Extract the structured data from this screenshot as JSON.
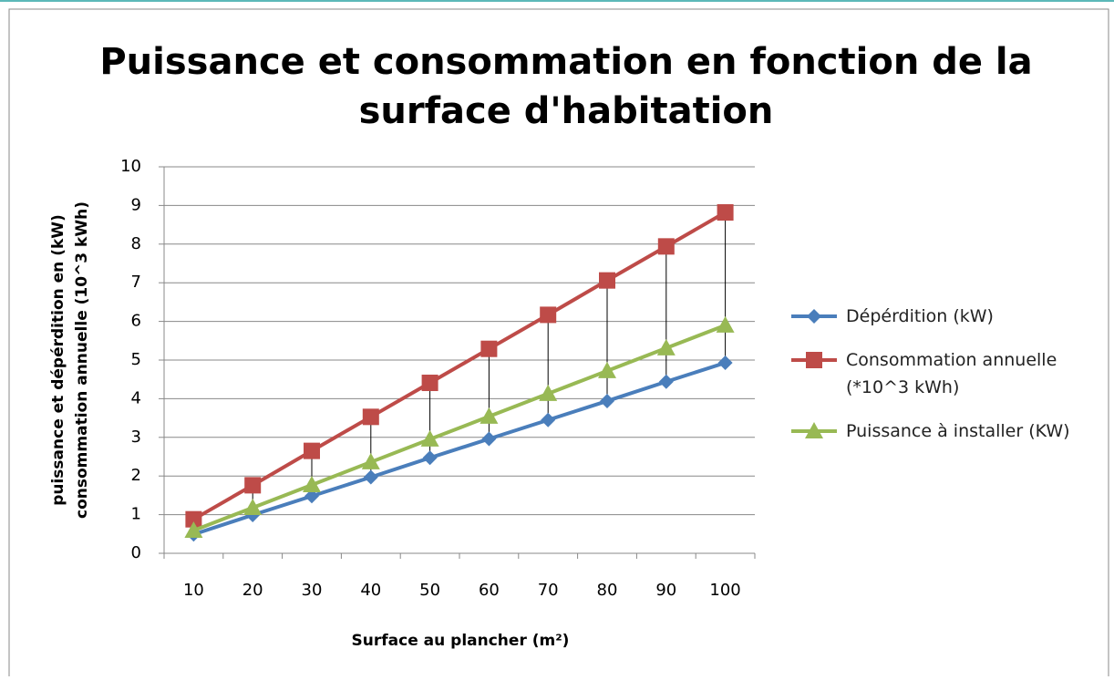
{
  "chart_data": {
    "type": "line",
    "title": [
      "Puissance et consommation en fonction de la",
      "surface d'habitation"
    ],
    "xlabel": "Surface au plancher (m²)",
    "ylabel": [
      "puissance et dépérdition en (kW)",
      "consommation annuelle (10^3 kWh)"
    ],
    "categories": [
      "10",
      "20",
      "30",
      "40",
      "50",
      "60",
      "70",
      "80",
      "90",
      "100"
    ],
    "series": [
      {
        "name": "Dépérdition (kW)",
        "color": "#4a7ebb",
        "marker": "diamond",
        "values": [
          0.49,
          0.99,
          1.48,
          1.97,
          2.47,
          2.96,
          3.45,
          3.94,
          4.44,
          4.93
        ]
      },
      {
        "name": "Consommation annuelle (*10^3 kWh)",
        "color": "#be4b48",
        "marker": "square",
        "values": [
          0.88,
          1.76,
          2.65,
          3.53,
          4.41,
          5.29,
          6.17,
          7.06,
          7.94,
          8.82
        ]
      },
      {
        "name": "Puissance à installer (KW)",
        "color": "#98b954",
        "marker": "triangle",
        "values": [
          0.59,
          1.18,
          1.77,
          2.36,
          2.95,
          3.54,
          4.13,
          4.72,
          5.31,
          5.9
        ]
      }
    ],
    "ylim": [
      0,
      10
    ],
    "yticks": [
      0,
      1,
      2,
      3,
      4,
      5,
      6,
      7,
      8,
      9,
      10
    ],
    "grid": true,
    "high_low_lines": true,
    "legend": "right"
  }
}
